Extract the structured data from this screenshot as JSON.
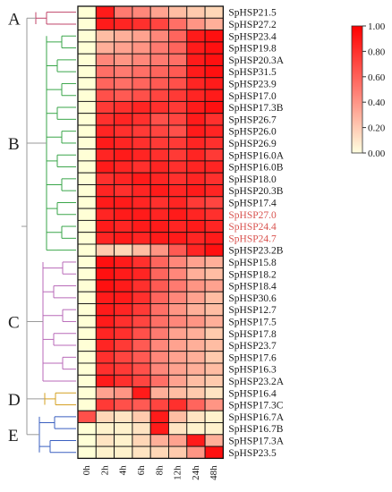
{
  "chart_data": {
    "type": "heatmap",
    "title": "",
    "xlabel": "",
    "ylabel": "",
    "columns": [
      "0h",
      "2h",
      "4h",
      "6h",
      "8h",
      "12h",
      "24h",
      "48h"
    ],
    "rows": [
      "SpHSP21.5",
      "SpHSP27.2",
      "SpHSP23.4",
      "SpHSP19.8",
      "SpHSP20.3A",
      "SpHSP31.5",
      "SpHSP23.9",
      "SpHSP17.0",
      "SpHSP17.3B",
      "SpHSP26.7",
      "SpHSP26.0",
      "SpHSP26.9",
      "SpHSP16.0A",
      "SpHSP16.0B",
      "SpHSP18.0",
      "SpHSP20.3B",
      "SpHSP17.4",
      "SpHSP27.0",
      "SpHSP24.4",
      "SpHSP24.7",
      "SpHSP23.2B",
      "SpHSP15.8",
      "SpHSP18.2",
      "SpHSP18.4",
      "SpHSP30.6",
      "SpHSP12.7",
      "SpHSP17.5",
      "SpHSP17.8",
      "SpHSP23.7",
      "SpHSP17.6",
      "SpHSP16.3",
      "SpHSP23.2A",
      "SpHSP16.4",
      "SpHSP17.3C",
      "SpHSP16.7A",
      "SpHSP16.7B",
      "SpHSP17.3A",
      "SpHSP23.5"
    ],
    "highlighted_rows": [
      "SpHSP27.0",
      "SpHSP24.4",
      "SpHSP24.7"
    ],
    "values": [
      [
        0.0,
        0.95,
        0.5,
        0.45,
        0.35,
        0.25,
        0.2,
        0.15
      ],
      [
        0.0,
        0.95,
        0.9,
        0.85,
        0.75,
        0.55,
        0.4,
        0.3
      ],
      [
        0.0,
        0.25,
        0.3,
        0.35,
        0.45,
        0.6,
        0.95,
        1.0
      ],
      [
        0.0,
        0.3,
        0.35,
        0.4,
        0.5,
        0.6,
        0.95,
        1.0
      ],
      [
        0.0,
        0.45,
        0.4,
        0.45,
        0.5,
        0.55,
        0.95,
        1.0
      ],
      [
        0.0,
        0.55,
        0.5,
        0.55,
        0.6,
        0.65,
        0.95,
        1.0
      ],
      [
        0.0,
        0.6,
        0.55,
        0.6,
        0.65,
        0.7,
        0.9,
        0.95
      ],
      [
        0.0,
        0.7,
        0.65,
        0.7,
        0.75,
        0.8,
        0.9,
        0.95
      ],
      [
        0.0,
        0.8,
        0.85,
        0.9,
        0.85,
        0.8,
        0.95,
        1.0
      ],
      [
        0.0,
        0.85,
        0.9,
        0.85,
        0.7,
        0.75,
        0.95,
        0.85
      ],
      [
        0.0,
        0.9,
        0.85,
        0.8,
        0.75,
        0.7,
        0.95,
        0.9
      ],
      [
        0.0,
        0.95,
        0.9,
        0.85,
        0.8,
        0.8,
        0.9,
        0.85
      ],
      [
        0.0,
        0.9,
        0.95,
        0.9,
        0.85,
        0.8,
        0.9,
        0.8
      ],
      [
        0.0,
        0.95,
        0.9,
        0.85,
        0.9,
        0.85,
        0.9,
        0.9
      ],
      [
        0.0,
        0.85,
        0.9,
        0.95,
        0.9,
        0.85,
        0.9,
        0.85
      ],
      [
        0.0,
        0.9,
        0.85,
        0.9,
        0.95,
        0.9,
        0.95,
        0.9
      ],
      [
        0.0,
        0.95,
        0.95,
        0.9,
        0.85,
        0.9,
        0.8,
        0.75
      ],
      [
        0.0,
        0.9,
        0.95,
        0.95,
        0.9,
        0.95,
        0.9,
        0.85
      ],
      [
        0.0,
        0.95,
        0.9,
        0.95,
        0.95,
        0.9,
        0.95,
        0.9
      ],
      [
        0.0,
        0.9,
        0.95,
        0.9,
        0.95,
        0.95,
        0.9,
        0.95
      ],
      [
        0.0,
        0.2,
        0.15,
        0.25,
        0.4,
        0.65,
        0.9,
        1.0
      ],
      [
        0.0,
        1.0,
        0.95,
        0.85,
        0.6,
        0.45,
        0.35,
        0.3
      ],
      [
        0.0,
        1.0,
        0.95,
        0.9,
        0.6,
        0.45,
        0.3,
        0.25
      ],
      [
        0.0,
        1.0,
        0.95,
        0.85,
        0.65,
        0.5,
        0.4,
        0.35
      ],
      [
        0.0,
        0.95,
        0.95,
        0.85,
        0.6,
        0.45,
        0.35,
        0.25
      ],
      [
        0.0,
        0.95,
        0.9,
        0.8,
        0.55,
        0.4,
        0.3,
        0.25
      ],
      [
        0.0,
        0.95,
        0.85,
        0.75,
        0.55,
        0.45,
        0.4,
        0.3
      ],
      [
        0.0,
        0.9,
        0.85,
        0.7,
        0.5,
        0.35,
        0.3,
        0.2
      ],
      [
        0.0,
        0.9,
        0.8,
        0.65,
        0.45,
        0.35,
        0.3,
        0.25
      ],
      [
        0.0,
        0.85,
        0.75,
        0.65,
        0.45,
        0.35,
        0.3,
        0.2
      ],
      [
        0.0,
        0.85,
        0.8,
        0.7,
        0.45,
        0.35,
        0.3,
        0.25
      ],
      [
        0.0,
        0.95,
        0.85,
        0.75,
        0.55,
        0.35,
        0.25,
        0.2
      ],
      [
        0.0,
        0.35,
        0.4,
        0.95,
        0.3,
        0.25,
        0.2,
        0.1
      ],
      [
        0.0,
        0.8,
        0.7,
        0.65,
        0.75,
        0.85,
        0.6,
        0.4
      ],
      [
        0.7,
        0.15,
        0.1,
        0.2,
        0.95,
        0.25,
        0.1,
        0.05
      ],
      [
        0.0,
        0.05,
        0.05,
        0.1,
        0.95,
        0.1,
        0.05,
        0.05
      ],
      [
        0.0,
        0.1,
        0.05,
        0.15,
        0.3,
        0.35,
        0.95,
        0.3
      ],
      [
        0.0,
        0.05,
        0.05,
        0.1,
        0.15,
        0.2,
        0.4,
        1.0
      ]
    ],
    "clades": [
      {
        "label": "A",
        "first_row": 0,
        "last_row": 1,
        "color": "#c0446a"
      },
      {
        "label": "B",
        "first_row": 2,
        "last_row": 20,
        "color": "#3aa64a"
      },
      {
        "label": "C",
        "first_row": 21,
        "last_row": 31,
        "color": "#b86ab8"
      },
      {
        "label": "D",
        "first_row": 32,
        "last_row": 33,
        "color": "#d4a020"
      },
      {
        "label": "E",
        "first_row": 34,
        "last_row": 37,
        "color": "#3a5fc0"
      }
    ],
    "colorbar": {
      "min": 0.0,
      "max": 1.0,
      "ticks": [
        "0.00",
        "0.20",
        "0.40",
        "0.60",
        "0.80",
        "1.00"
      ],
      "low_color": "#ffffd6",
      "high_color": "#ff1010"
    },
    "legend_position": "top-right",
    "grid": true
  }
}
